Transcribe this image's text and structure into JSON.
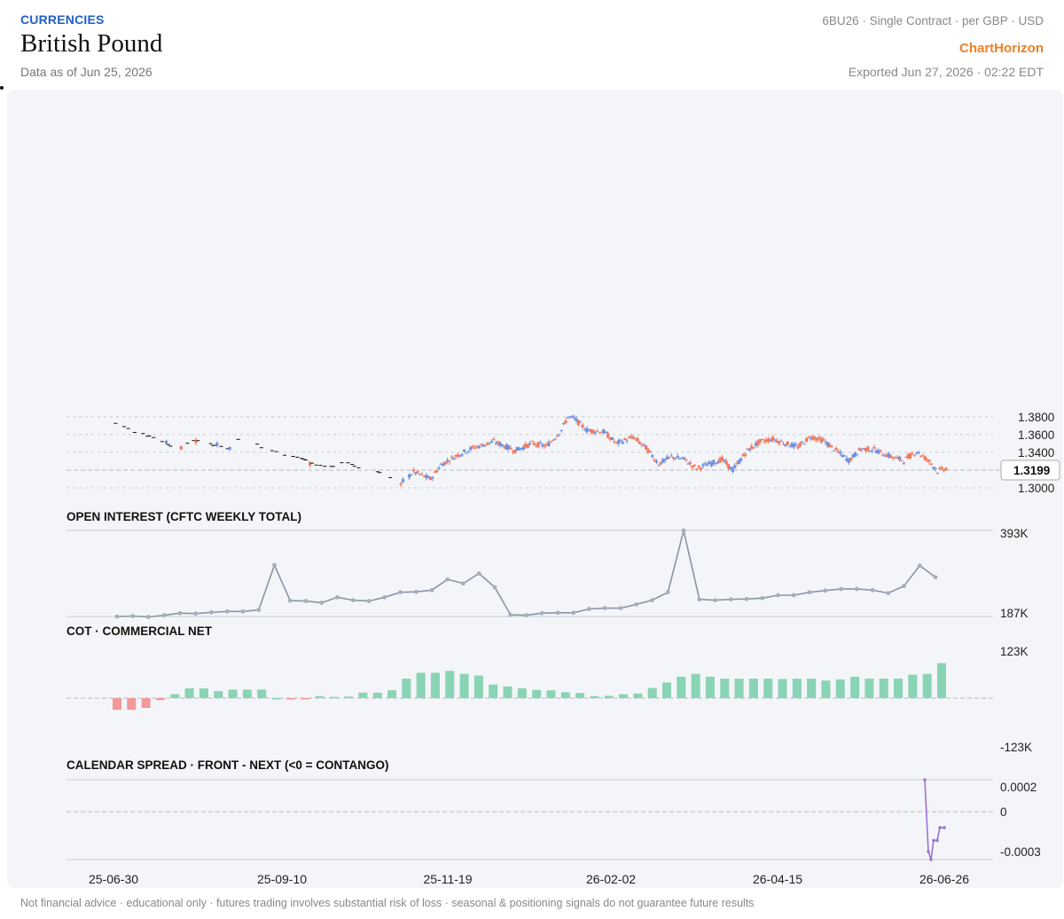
{
  "header": {
    "category": "CURRENCIES",
    "title": "British Pound",
    "as_of": "Data as of Jun 25, 2026",
    "contract": "6BU26 · Single Contract · per GBP · USD",
    "brand": "ChartHorizon",
    "exported": "Exported Jun 27, 2026 · 02:22 EDT"
  },
  "footer": {
    "disclaimer": "Not financial advice · educational only · futures trading involves substantial risk of loss · seasonal & positioning signals do not guarantee future results"
  },
  "colors": {
    "up": "#6f8fe0",
    "down": "#ef7a5e",
    "doji": "#111111",
    "oi_line": "#8a94a6",
    "cot_pos": "#88d4b4",
    "cot_neg": "#f1999b",
    "spread_line": "#9a72d8",
    "grid": "#c9ccd4"
  },
  "chart_data": [
    {
      "type": "candlestick",
      "title": "British Pound",
      "x_ticks": [
        "25-06-30",
        "25-09-10",
        "25-11-19",
        "26-02-02",
        "26-04-15",
        "26-06-26"
      ],
      "y_ticks": [
        "1.3000",
        "1.3400",
        "1.3600",
        "1.3800"
      ],
      "ylim": [
        1.3,
        1.385
      ],
      "last_price": "1.3199",
      "grid": true
    },
    {
      "type": "line",
      "title": "OPEN INTEREST (CFTC WEEKLY TOTAL)",
      "y_ticks": [
        "393K",
        "187K"
      ],
      "ylim": [
        187000,
        393000
      ],
      "values": [
        187000,
        188000,
        186000,
        190000,
        195000,
        194000,
        197000,
        199000,
        199000,
        203000,
        310000,
        225000,
        224000,
        220000,
        233000,
        226000,
        224000,
        233000,
        245000,
        246000,
        250000,
        276000,
        266000,
        290000,
        257000,
        191000,
        190000,
        195000,
        196000,
        196000,
        205000,
        207000,
        207000,
        216000,
        226000,
        245000,
        393000,
        228000,
        226000,
        228000,
        229000,
        231000,
        238000,
        238000,
        245000,
        249000,
        253000,
        253000,
        250000,
        243000,
        260000,
        309000,
        281000
      ]
    },
    {
      "type": "bar",
      "title": "COT · COMMERCIAL NET",
      "y_ticks": [
        "123K",
        "-123K"
      ],
      "ylim": [
        -123000,
        123000
      ],
      "values": [
        -30000,
        -30000,
        -25000,
        -5000,
        10000,
        25000,
        25000,
        18000,
        22000,
        22000,
        22000,
        0,
        -2000,
        -2000,
        5000,
        3000,
        4000,
        14000,
        14000,
        20000,
        50000,
        65000,
        65000,
        70000,
        62000,
        58000,
        35000,
        30000,
        25000,
        21000,
        20000,
        15000,
        13000,
        5000,
        6000,
        10000,
        12000,
        26000,
        40000,
        55000,
        62000,
        55000,
        50000,
        50000,
        50000,
        50000,
        49000,
        50000,
        50000,
        45000,
        48000,
        55000,
        50000,
        50000,
        50000,
        60000,
        62000,
        90000
      ]
    },
    {
      "type": "line",
      "title": "CALENDAR SPREAD · FRONT - NEXT (<0 = CONTANGO)",
      "y_ticks": [
        "0.0002",
        "0",
        "-0.0003"
      ],
      "ylim": [
        -0.0003,
        0.0002
      ],
      "values": [
        0.0002,
        -0.00025,
        -0.0003,
        -0.00018,
        -0.00018,
        -0.0001,
        -0.0001
      ]
    }
  ]
}
